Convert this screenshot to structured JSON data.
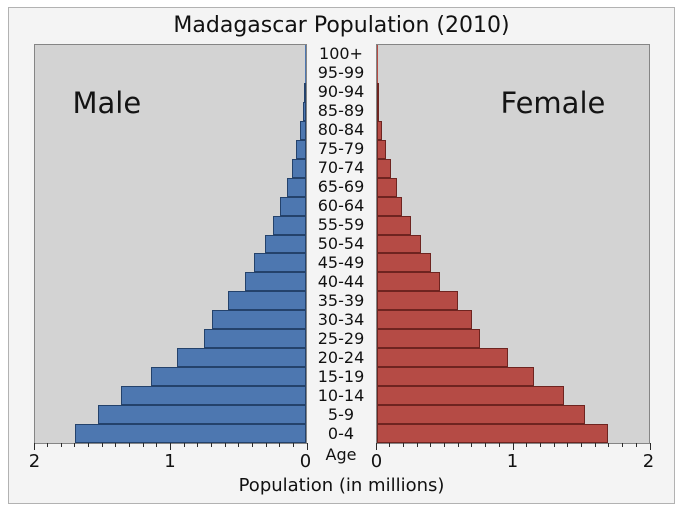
{
  "title": "Madagascar Population (2010)",
  "panel_labels": {
    "male": "Male",
    "female": "Female"
  },
  "age_axis_label": "Age",
  "chart_data": {
    "type": "bar",
    "subtype": "population-pyramid",
    "title": "Madagascar Population (2010)",
    "xlabel": "Population (in millions)",
    "ylabel": "Age",
    "xlim": [
      0,
      2
    ],
    "x_major_ticks": [
      0,
      1,
      2
    ],
    "x_minor_step": 0.1,
    "grid": false,
    "legend_position": "none",
    "age_groups": [
      "100+",
      "95-99",
      "90-94",
      "85-89",
      "80-84",
      "75-79",
      "70-74",
      "65-69",
      "60-64",
      "55-59",
      "50-54",
      "45-49",
      "40-44",
      "35-39",
      "30-34",
      "25-29",
      "20-24",
      "15-19",
      "10-14",
      "5-9",
      "0-4"
    ],
    "series": [
      {
        "name": "Male",
        "values": [
          0.001,
          0.003,
          0.01,
          0.02,
          0.04,
          0.07,
          0.1,
          0.14,
          0.19,
          0.24,
          0.3,
          0.38,
          0.45,
          0.57,
          0.69,
          0.75,
          0.95,
          1.14,
          1.36,
          1.53,
          1.7
        ]
      },
      {
        "name": "Female",
        "values": [
          0.001,
          0.004,
          0.01,
          0.02,
          0.04,
          0.07,
          0.11,
          0.15,
          0.19,
          0.25,
          0.33,
          0.4,
          0.47,
          0.6,
          0.7,
          0.76,
          0.97,
          1.16,
          1.38,
          1.53,
          1.7
        ]
      }
    ],
    "colors": {
      "male_fill": "#4d77b0",
      "male_border": "#24426b",
      "female_fill": "#b54b45",
      "female_border": "#6e2420",
      "panel_background": "#d3d3d3",
      "figure_background": "#f4f4f4"
    }
  }
}
